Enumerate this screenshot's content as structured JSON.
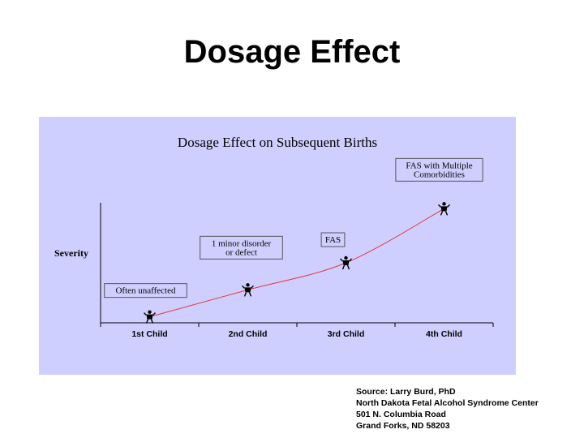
{
  "slide": {
    "title": "Dosage Effect"
  },
  "chart_data": {
    "type": "line",
    "title": "Dosage Effect on Subsequent Births",
    "xlabel": "",
    "ylabel": "Severity",
    "categories": [
      "1st Child",
      "2nd Child",
      "3rd Child",
      "4th Child"
    ],
    "series": [
      {
        "values": [
          1,
          2,
          3,
          5
        ]
      }
    ],
    "point_labels": [
      "Often unaffected",
      "1 minor disorder\nor defect",
      "FAS",
      "FAS with Multiple\nComorbidities"
    ],
    "ylim": [
      0,
      6
    ],
    "grid": false,
    "line_color": "#e03a3a",
    "background_color": "#cfcfff"
  },
  "source": {
    "lines": [
      "Source: Larry Burd, PhD",
      "North Dakota Fetal Alcohol Syndrome Center",
      "501 N. Columbia Road",
      "Grand Forks, ND  58203"
    ]
  }
}
